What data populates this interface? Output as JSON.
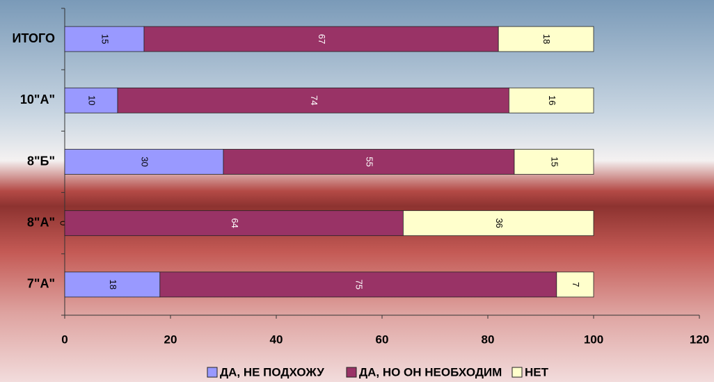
{
  "chart_data": {
    "type": "stacked-bar-horizontal",
    "categories": [
      "ИТОГО",
      "10\"А\"",
      "8\"Б\"",
      "8\"А\"",
      "7\"А\""
    ],
    "series": [
      {
        "name": "ДА, НЕ ПОДХОЖУ",
        "color": "#9999ff",
        "values": [
          15,
          10,
          30,
          0,
          18
        ]
      },
      {
        "name": "ДА, НО ОН НЕОБХОДИМ",
        "color": "#993366",
        "values": [
          67,
          74,
          55,
          64,
          75
        ]
      },
      {
        "name": "НЕТ",
        "color": "#ffffcc",
        "values": [
          18,
          16,
          15,
          36,
          7
        ]
      }
    ],
    "xlim": [
      0,
      120
    ],
    "xticks": [
      0,
      20,
      40,
      60,
      80,
      100,
      120
    ],
    "legend": "bottom"
  }
}
